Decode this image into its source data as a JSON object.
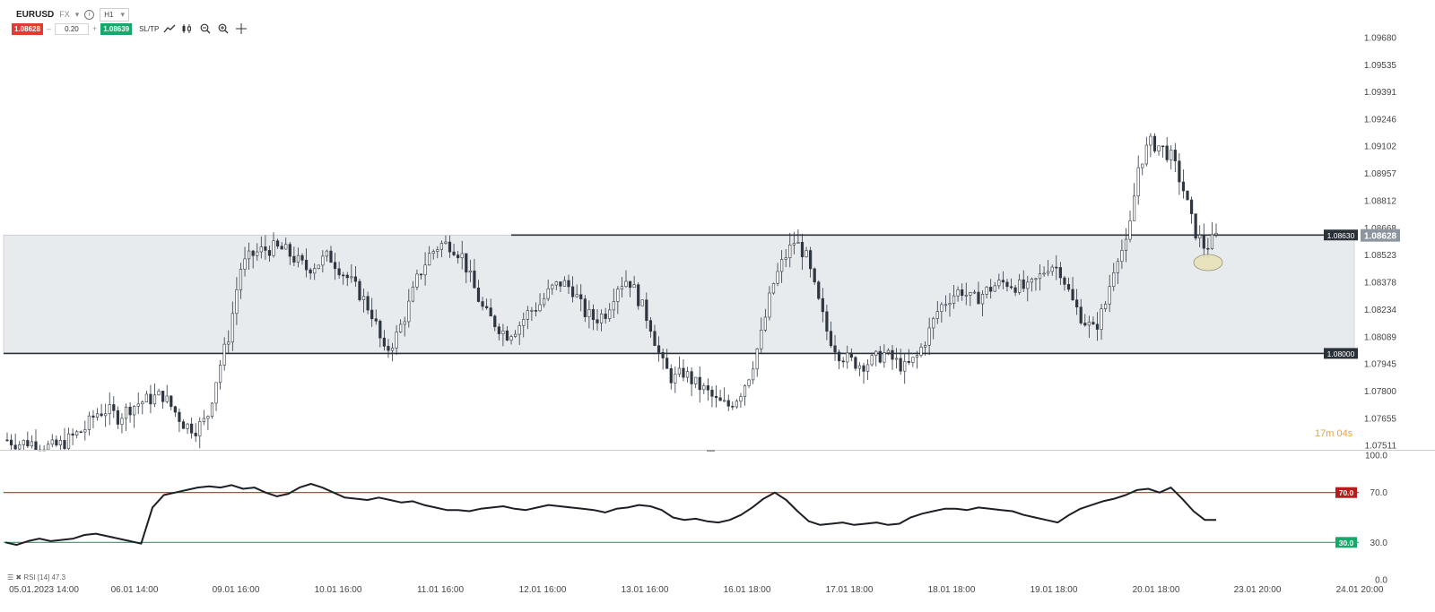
{
  "header": {
    "symbol": "EURUSD",
    "market": "FX",
    "timeframe": "H1",
    "sell_price": "1.08628",
    "lot": "0.20",
    "buy_price": "1.08639",
    "sltp_label": "SL/TP",
    "minus_label": "–",
    "plus_label": "+"
  },
  "countdown": {
    "minutes": "17m",
    "seconds": "04s"
  },
  "rsi_label": "RSI [14] 47.3",
  "colors": {
    "sell": "#e23b35",
    "buy": "#19a86b",
    "upper_line": "#c62828",
    "lower_line": "#19a86b",
    "zone": "#e8ebee",
    "candle": "#2f3640",
    "countdown": "#e8a33c"
  },
  "chart_data": {
    "type": "candlestick",
    "symbol": "EURUSD",
    "timeframe": "H1",
    "y_ticks": [
      "1.09680",
      "1.09535",
      "1.09391",
      "1.09246",
      "1.09102",
      "1.08957",
      "1.08812",
      "1.08668",
      "1.08523",
      "1.08378",
      "1.08234",
      "1.08089",
      "1.07945",
      "1.07800",
      "1.07655",
      "1.07511"
    ],
    "ylim": [
      1.07511,
      1.0968
    ],
    "x_ticks": [
      "05.01.2023 14:00",
      "06.01 14:00",
      "09.01 16:00",
      "10.01 16:00",
      "11.01 16:00",
      "12.01 16:00",
      "13.01 16:00",
      "16.01 18:00",
      "17.01 18:00",
      "18.01 18:00",
      "19.01 18:00",
      "20.01 18:00",
      "23.01 20:00",
      "24.01 20:00"
    ],
    "current_price": "1.08628",
    "horizontal_lines": [
      {
        "label": "1.08630",
        "value": 1.0863
      },
      {
        "label": "1.08000",
        "value": 1.08
      }
    ],
    "price_path": [
      1.0754,
      1.0752,
      1.0753,
      1.0751,
      1.075,
      1.0752,
      1.0756,
      1.076,
      1.0768,
      1.077,
      1.0766,
      1.0771,
      1.0774,
      1.0776,
      1.0778,
      1.077,
      1.0762,
      1.076,
      1.0765,
      1.079,
      1.081,
      1.0845,
      1.0852,
      1.0855,
      1.0856,
      1.0855,
      1.085,
      1.0845,
      1.0848,
      1.0852,
      1.0845,
      1.0838,
      1.083,
      1.082,
      1.08,
      1.0808,
      1.0822,
      1.084,
      1.0852,
      1.0858,
      1.0858,
      1.0852,
      1.0836,
      1.0822,
      1.0816,
      1.081,
      1.0814,
      1.0822,
      1.0826,
      1.0834,
      1.0838,
      1.0834,
      1.0822,
      1.0818,
      1.0822,
      1.0836,
      1.084,
      1.0828,
      1.0815,
      1.0795,
      1.0786,
      1.079,
      1.0784,
      1.078,
      1.0774,
      1.0772,
      1.0778,
      1.079,
      1.081,
      1.0836,
      1.085,
      1.086,
      1.0852,
      1.083,
      1.081,
      1.08,
      1.0796,
      1.0794,
      1.0796,
      1.08,
      1.0796,
      1.0792,
      1.0798,
      1.081,
      1.0824,
      1.083,
      1.0834,
      1.0828,
      1.0832,
      1.0836,
      1.0838,
      1.0836,
      1.0834,
      1.084,
      1.0848,
      1.0844,
      1.0828,
      1.0818,
      1.0812,
      1.0826,
      1.0852,
      1.0858,
      1.09,
      1.0912,
      1.091,
      1.0904,
      1.0888,
      1.0866,
      1.0856,
      1.0862
    ],
    "rsi": {
      "label": "RSI [14] 47.3",
      "levels": [
        {
          "label": "70.0",
          "value": 70
        },
        {
          "label": "30.0",
          "value": 30
        }
      ],
      "y_ticks": [
        "100.0",
        "70.0",
        "30.0",
        "0.0"
      ],
      "ylim": [
        0,
        100
      ],
      "values": [
        30,
        28,
        31,
        33,
        31,
        32,
        33,
        36,
        37,
        35,
        33,
        31,
        29,
        58,
        68,
        70,
        72,
        74,
        75,
        74,
        76,
        73,
        74,
        70,
        67,
        69,
        74,
        77,
        74,
        70,
        66,
        65,
        64,
        66,
        64,
        62,
        63,
        60,
        58,
        56,
        56,
        55,
        57,
        58,
        59,
        57,
        56,
        58,
        60,
        59,
        58,
        57,
        56,
        54,
        57,
        58,
        60,
        59,
        56,
        50,
        48,
        49,
        47,
        46,
        48,
        52,
        58,
        65,
        70,
        64,
        55,
        47,
        44,
        45,
        46,
        44,
        45,
        46,
        44,
        45,
        50,
        53,
        55,
        57,
        57,
        56,
        58,
        57,
        56,
        55,
        52,
        50,
        48,
        46,
        52,
        57,
        60,
        63,
        65,
        68,
        72,
        73,
        70,
        74,
        65,
        55,
        48,
        48
      ]
    }
  }
}
